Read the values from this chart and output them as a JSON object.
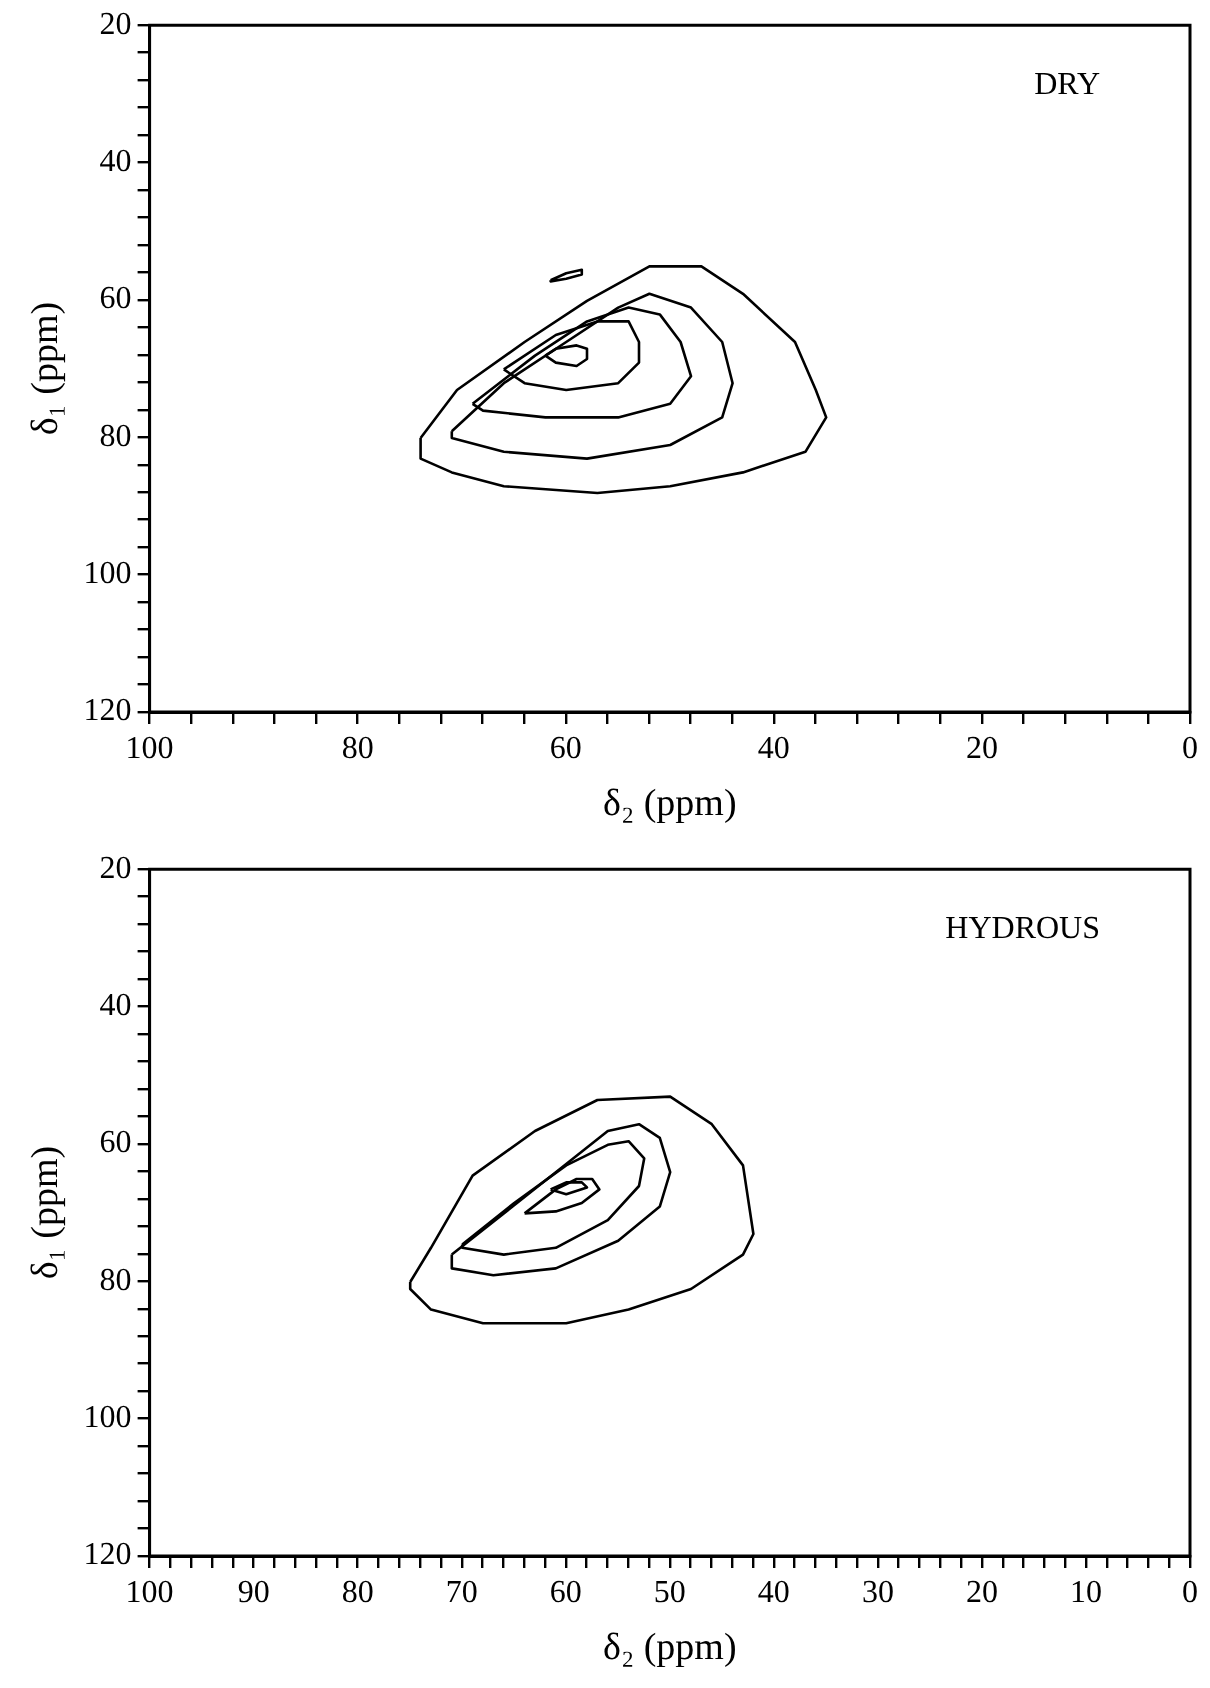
{
  "chart_data": [
    {
      "type": "line",
      "xlabel": "δ₂ (ppm)",
      "ylabel": "δ₁ (ppm)",
      "annotations": [
        "DRY"
      ],
      "xlim": [
        100,
        0
      ],
      "ylim": [
        120,
        20
      ],
      "xticks": [
        100,
        {
          "value": 96,
          "label": null
        },
        {
          "value": 92,
          "label": null
        },
        {
          "value": 88,
          "label": null
        },
        {
          "value": 84,
          "label": null
        },
        80,
        {
          "value": 76,
          "label": null
        },
        {
          "value": 72,
          "label": null
        },
        {
          "value": 68,
          "label": null
        },
        {
          "value": 64,
          "label": null
        },
        60,
        {
          "value": 56,
          "label": null
        },
        {
          "value": 52,
          "label": null
        },
        {
          "value": 48,
          "label": null
        },
        {
          "value": 44,
          "label": null
        },
        40,
        {
          "value": 36,
          "label": null
        },
        {
          "value": 32,
          "label": null
        },
        {
          "value": 28,
          "label": null
        },
        {
          "value": 24,
          "label": null
        },
        20,
        {
          "value": 16,
          "label": null
        },
        {
          "value": 12,
          "label": null
        },
        {
          "value": 8,
          "label": null
        },
        {
          "value": 4,
          "label": null
        },
        0
      ],
      "yticks": [
        20,
        {
          "value": 24,
          "label": null
        },
        {
          "value": 28,
          "label": null
        },
        {
          "value": 32,
          "label": null
        },
        {
          "value": 36,
          "label": null
        },
        40,
        {
          "value": 44,
          "label": null
        },
        {
          "value": 48,
          "label": null
        },
        {
          "value": 52,
          "label": null
        },
        {
          "value": 56,
          "label": null
        },
        60,
        {
          "value": 64,
          "label": null
        },
        {
          "value": 68,
          "label": null
        },
        {
          "value": 72,
          "label": null
        },
        {
          "value": 76,
          "label": null
        },
        80,
        {
          "value": 84,
          "label": null
        },
        {
          "value": 88,
          "label": null
        },
        {
          "value": 92,
          "label": null
        },
        {
          "value": 96,
          "label": null
        },
        100,
        {
          "value": 104,
          "label": null
        },
        {
          "value": 108,
          "label": null
        },
        {
          "value": 112,
          "label": null
        },
        {
          "value": 116,
          "label": null
        },
        120
      ]
    },
    {
      "type": "line",
      "xlabel": "δ₂ (ppm)",
      "ylabel": "δ₁ (ppm)",
      "annotations": [
        "HYDROUS"
      ],
      "xlim": [
        100,
        0
      ],
      "ylim": [
        120,
        20
      ],
      "xticks": [
        100,
        {
          "value": 98,
          "label": null
        },
        {
          "value": 96,
          "label": null
        },
        {
          "value": 94,
          "label": null
        },
        {
          "value": 92,
          "label": null
        },
        90,
        {
          "value": 88,
          "label": null
        },
        {
          "value": 86,
          "label": null
        },
        {
          "value": 84,
          "label": null
        },
        {
          "value": 82,
          "label": null
        },
        80,
        {
          "value": 78,
          "label": null
        },
        {
          "value": 76,
          "label": null
        },
        {
          "value": 74,
          "label": null
        },
        {
          "value": 72,
          "label": null
        },
        70,
        {
          "value": 68,
          "label": null
        },
        {
          "value": 66,
          "label": null
        },
        {
          "value": 64,
          "label": null
        },
        {
          "value": 62,
          "label": null
        },
        60,
        {
          "value": 58,
          "label": null
        },
        {
          "value": 56,
          "label": null
        },
        {
          "value": 54,
          "label": null
        },
        {
          "value": 52,
          "label": null
        },
        50,
        {
          "value": 48,
          "label": null
        },
        {
          "value": 46,
          "label": null
        },
        {
          "value": 44,
          "label": null
        },
        {
          "value": 42,
          "label": null
        },
        40,
        {
          "value": 38,
          "label": null
        },
        {
          "value": 36,
          "label": null
        },
        {
          "value": 34,
          "label": null
        },
        {
          "value": 32,
          "label": null
        },
        30,
        {
          "value": 28,
          "label": null
        },
        {
          "value": 26,
          "label": null
        },
        {
          "value": 24,
          "label": null
        },
        {
          "value": 22,
          "label": null
        },
        20,
        {
          "value": 18,
          "label": null
        },
        {
          "value": 16,
          "label": null
        },
        {
          "value": 14,
          "label": null
        },
        {
          "value": 12,
          "label": null
        },
        10,
        {
          "value": 8,
          "label": null
        },
        {
          "value": 6,
          "label": null
        },
        {
          "value": 4,
          "label": null
        },
        {
          "value": 2,
          "label": null
        },
        0
      ],
      "yticks": [
        20,
        {
          "value": 24,
          "label": null
        },
        {
          "value": 28,
          "label": null
        },
        {
          "value": 32,
          "label": null
        },
        {
          "value": 36,
          "label": null
        },
        40,
        {
          "value": 44,
          "label": null
        },
        {
          "value": 48,
          "label": null
        },
        {
          "value": 52,
          "label": null
        },
        {
          "value": 56,
          "label": null
        },
        60,
        {
          "value": 64,
          "label": null
        },
        {
          "value": 68,
          "label": null
        },
        {
          "value": 72,
          "label": null
        },
        {
          "value": 76,
          "label": null
        },
        80,
        {
          "value": 84,
          "label": null
        },
        {
          "value": 88,
          "label": null
        },
        {
          "value": 92,
          "label": null
        },
        {
          "value": 96,
          "label": null
        },
        100,
        {
          "value": 104,
          "label": null
        },
        {
          "value": 108,
          "label": null
        },
        {
          "value": 112,
          "label": null
        },
        {
          "value": 116,
          "label": null
        },
        120
      ]
    }
  ]
}
